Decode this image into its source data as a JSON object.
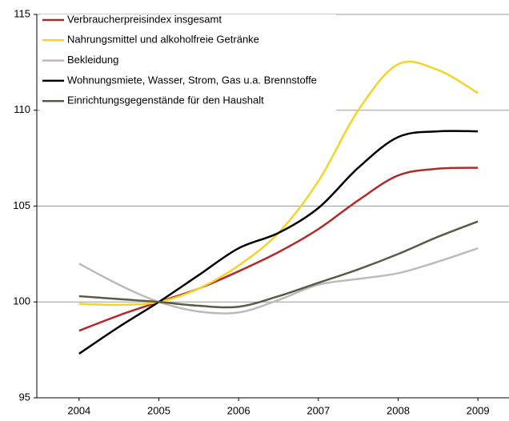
{
  "chart_data": {
    "type": "line",
    "x": [
      2004,
      2004.5,
      2005,
      2005.5,
      2006,
      2006.5,
      2007,
      2007.5,
      2008,
      2008.5,
      2009
    ],
    "xlim": [
      2003.47,
      2009.39
    ],
    "xticks": [
      2004,
      2005,
      2006,
      2007,
      2008,
      2009
    ],
    "ylim": [
      95,
      115
    ],
    "yticks": [
      95,
      100,
      105,
      110,
      115
    ],
    "grid": true,
    "legend": "upper left",
    "series": [
      {
        "name": "Verbraucherpreisindex insgesamt",
        "color": "#b22a2a",
        "values": [
          98.5,
          99.3,
          100.0,
          100.7,
          101.6,
          102.6,
          103.8,
          105.3,
          106.6,
          106.95,
          107.0
        ]
      },
      {
        "name": "Nahrungsmittel und alkoholfreie Getränke",
        "color": "#f5d327",
        "values": [
          99.9,
          99.85,
          100.0,
          100.7,
          101.9,
          103.6,
          106.3,
          110.0,
          112.4,
          112.1,
          110.9
        ]
      },
      {
        "name": "Bekleidung",
        "color": "#bbbbbb",
        "values": [
          102.0,
          100.9,
          100.0,
          99.5,
          99.45,
          100.1,
          100.9,
          101.2,
          101.5,
          102.1,
          102.8
        ]
      },
      {
        "name": "Wohnungsmiete, Wasser, Strom, Gas u.a. Brennstoffe",
        "color": "#000000",
        "values": [
          97.3,
          98.7,
          100.0,
          101.4,
          102.8,
          103.6,
          104.9,
          107.0,
          108.6,
          108.9,
          108.9
        ]
      },
      {
        "name": "Einrichtungsgegenstände für den Haushalt",
        "color": "#5a5a48",
        "values": [
          100.3,
          100.15,
          100.0,
          99.8,
          99.75,
          100.3,
          101.0,
          101.7,
          102.5,
          103.4,
          104.2
        ]
      }
    ]
  }
}
